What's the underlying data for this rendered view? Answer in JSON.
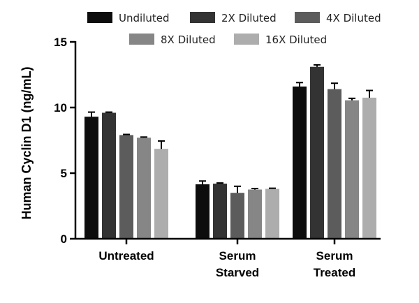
{
  "chart_data": {
    "type": "bar",
    "title": "",
    "xlabel": "",
    "ylabel": "Human Cyclin D1 (ng/mL)",
    "ylim": [
      0,
      15
    ],
    "yticks": [
      0,
      5,
      10,
      15
    ],
    "categories": [
      [
        "Untreated"
      ],
      [
        "Serum",
        "Starved"
      ],
      [
        "Serum",
        "Treated"
      ]
    ],
    "series": [
      {
        "name": "Undiluted",
        "color": "#0d0d0d",
        "values": [
          9.3,
          4.15,
          11.6
        ],
        "errors": [
          0.35,
          0.25,
          0.3
        ]
      },
      {
        "name": "2X Diluted",
        "color": "#333333",
        "values": [
          9.6,
          4.2,
          13.1
        ],
        "errors": [
          0.05,
          0.05,
          0.15
        ]
      },
      {
        "name": "4X Diluted",
        "color": "#5c5c5c",
        "values": [
          7.9,
          3.5,
          11.4
        ],
        "errors": [
          0.05,
          0.5,
          0.45
        ]
      },
      {
        "name": "8X Diluted",
        "color": "#868686",
        "values": [
          7.7,
          3.75,
          10.55
        ],
        "errors": [
          0.05,
          0.08,
          0.15
        ]
      },
      {
        "name": "16X Diluted",
        "color": "#adadad",
        "values": [
          6.85,
          3.8,
          10.75
        ],
        "errors": [
          0.6,
          0.05,
          0.55
        ]
      }
    ],
    "legend": "top"
  }
}
